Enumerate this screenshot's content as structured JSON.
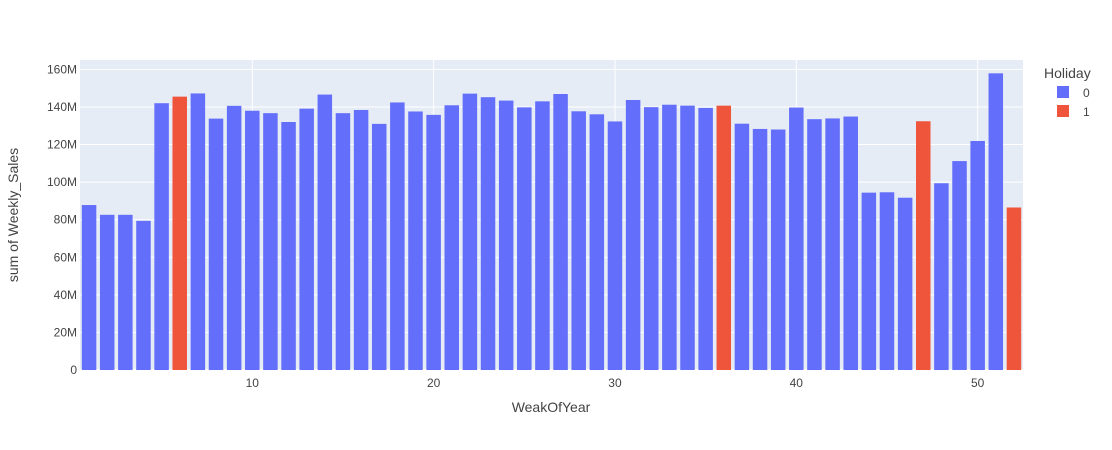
{
  "chart_data": {
    "type": "bar",
    "xlabel": "WeakOfYear",
    "ylabel": "sum of Weekly_Sales",
    "xlim": [
      0.5,
      52.5
    ],
    "ylim": [
      0,
      165000000
    ],
    "x_ticks": [
      10,
      20,
      30,
      40,
      50
    ],
    "y_ticks": [
      0,
      20000000,
      40000000,
      60000000,
      80000000,
      100000000,
      120000000,
      140000000,
      160000000
    ],
    "y_tick_labels": [
      "0",
      "20M",
      "40M",
      "60M",
      "80M",
      "100M",
      "120M",
      "140M",
      "160M"
    ],
    "legend": {
      "title": "Holiday",
      "placement": "top-right",
      "entries": [
        {
          "label": "0",
          "color": "#636efa"
        },
        {
          "label": "1",
          "color": "#ef553b"
        }
      ]
    },
    "colors": {
      "0": "#636efa",
      "1": "#ef553b",
      "plot_bg": "#e5ecf6",
      "grid": "#ffffff"
    },
    "grid": true,
    "x": [
      1,
      2,
      3,
      4,
      5,
      6,
      7,
      8,
      9,
      10,
      11,
      12,
      13,
      14,
      15,
      16,
      17,
      18,
      19,
      20,
      21,
      22,
      23,
      24,
      25,
      26,
      27,
      28,
      29,
      30,
      31,
      32,
      33,
      34,
      35,
      36,
      37,
      38,
      39,
      40,
      41,
      42,
      43,
      44,
      45,
      46,
      47,
      48,
      49,
      50,
      51,
      52
    ],
    "values": [
      87.8,
      82.6,
      82.6,
      79.4,
      142.0,
      145.5,
      147.2,
      133.8,
      140.6,
      138.0,
      136.7,
      132.0,
      139.1,
      146.6,
      136.7,
      138.4,
      131.0,
      142.4,
      137.6,
      135.8,
      140.9,
      147.1,
      145.2,
      143.4,
      139.8,
      143.0,
      146.9,
      137.7,
      136.1,
      132.3,
      143.7,
      139.9,
      141.2,
      140.7,
      139.5,
      140.7,
      131.1,
      128.3,
      128.0,
      139.7,
      133.5,
      133.9,
      134.9,
      94.4,
      94.6,
      91.7,
      132.4,
      99.4,
      111.2,
      121.9,
      157.9,
      86.5
    ],
    "values_unit": "M",
    "holiday": [
      0,
      0,
      0,
      0,
      0,
      1,
      0,
      0,
      0,
      0,
      0,
      0,
      0,
      0,
      0,
      0,
      0,
      0,
      0,
      0,
      0,
      0,
      0,
      0,
      0,
      0,
      0,
      0,
      0,
      0,
      0,
      0,
      0,
      0,
      0,
      1,
      0,
      0,
      0,
      0,
      0,
      0,
      0,
      0,
      0,
      0,
      1,
      0,
      0,
      0,
      0,
      1
    ]
  }
}
